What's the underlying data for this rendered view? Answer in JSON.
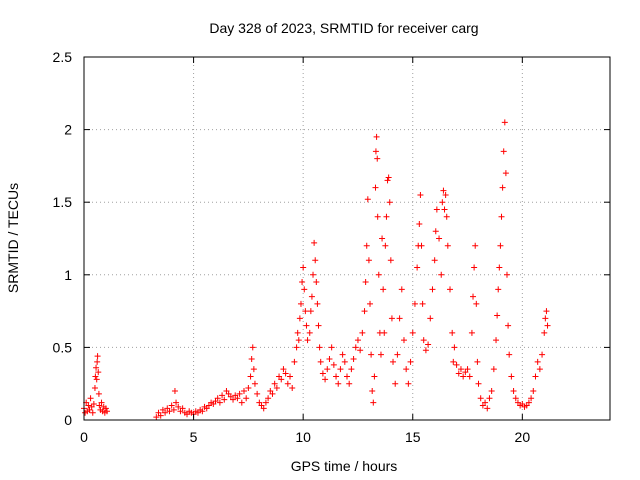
{
  "chart_data": {
    "type": "scatter",
    "title": "Day 328 of 2023, SRMTID for receiver carg",
    "xlabel": "GPS time / hours",
    "ylabel": "SRMTID / TECUs",
    "xlim": [
      0,
      24
    ],
    "ylim": [
      0,
      2.5
    ],
    "xticks": [
      0,
      5,
      10,
      15,
      20
    ],
    "yticks": [
      0,
      0.5,
      1,
      1.5,
      2,
      2.5
    ],
    "xtick_labels": [
      "0",
      "5",
      "10",
      "15",
      "20"
    ],
    "ytick_labels": [
      "0",
      "0.5",
      "1",
      "1.5",
      "2",
      "2.5"
    ],
    "grid": true,
    "marker": "+",
    "color": "#ff0000",
    "series": [
      {
        "name": "carg",
        "points": [
          [
            0.0,
            0.08
          ],
          [
            0.05,
            0.05
          ],
          [
            0.1,
            0.12
          ],
          [
            0.15,
            0.06
          ],
          [
            0.2,
            0.1
          ],
          [
            0.25,
            0.07
          ],
          [
            0.3,
            0.15
          ],
          [
            0.35,
            0.09
          ],
          [
            0.4,
            0.05
          ],
          [
            0.45,
            0.11
          ],
          [
            0.5,
            0.22
          ],
          [
            0.52,
            0.3
          ],
          [
            0.55,
            0.36
          ],
          [
            0.58,
            0.28
          ],
          [
            0.6,
            0.4
          ],
          [
            0.62,
            0.44
          ],
          [
            0.65,
            0.33
          ],
          [
            0.68,
            0.18
          ],
          [
            0.7,
            0.1
          ],
          [
            0.75,
            0.07
          ],
          [
            0.8,
            0.12
          ],
          [
            0.85,
            0.06
          ],
          [
            0.9,
            0.09
          ],
          [
            0.95,
            0.05
          ],
          [
            1.0,
            0.08
          ],
          [
            1.05,
            0.06
          ],
          [
            3.3,
            0.02
          ],
          [
            3.4,
            0.05
          ],
          [
            3.5,
            0.03
          ],
          [
            3.6,
            0.07
          ],
          [
            3.7,
            0.05
          ],
          [
            3.8,
            0.08
          ],
          [
            3.9,
            0.06
          ],
          [
            4.0,
            0.1
          ],
          [
            4.1,
            0.07
          ],
          [
            4.15,
            0.2
          ],
          [
            4.2,
            0.12
          ],
          [
            4.3,
            0.09
          ],
          [
            4.4,
            0.06
          ],
          [
            4.5,
            0.08
          ],
          [
            4.6,
            0.05
          ],
          [
            4.7,
            0.04
          ],
          [
            4.8,
            0.06
          ],
          [
            4.9,
            0.05
          ],
          [
            5.0,
            0.04
          ],
          [
            5.1,
            0.06
          ],
          [
            5.2,
            0.05
          ],
          [
            5.3,
            0.07
          ],
          [
            5.4,
            0.06
          ],
          [
            5.5,
            0.09
          ],
          [
            5.6,
            0.08
          ],
          [
            5.7,
            0.1
          ],
          [
            5.8,
            0.12
          ],
          [
            5.9,
            0.11
          ],
          [
            6.0,
            0.13
          ],
          [
            6.1,
            0.15
          ],
          [
            6.2,
            0.12
          ],
          [
            6.3,
            0.17
          ],
          [
            6.4,
            0.14
          ],
          [
            6.5,
            0.2
          ],
          [
            6.6,
            0.18
          ],
          [
            6.7,
            0.16
          ],
          [
            6.8,
            0.14
          ],
          [
            6.9,
            0.17
          ],
          [
            7.0,
            0.15
          ],
          [
            7.1,
            0.18
          ],
          [
            7.2,
            0.12
          ],
          [
            7.3,
            0.2
          ],
          [
            7.4,
            0.15
          ],
          [
            7.5,
            0.22
          ],
          [
            7.6,
            0.3
          ],
          [
            7.65,
            0.42
          ],
          [
            7.7,
            0.5
          ],
          [
            7.75,
            0.35
          ],
          [
            7.8,
            0.25
          ],
          [
            7.9,
            0.18
          ],
          [
            8.0,
            0.12
          ],
          [
            8.1,
            0.1
          ],
          [
            8.2,
            0.08
          ],
          [
            8.3,
            0.12
          ],
          [
            8.4,
            0.15
          ],
          [
            8.5,
            0.2
          ],
          [
            8.6,
            0.18
          ],
          [
            8.7,
            0.25
          ],
          [
            8.8,
            0.22
          ],
          [
            8.9,
            0.3
          ],
          [
            9.0,
            0.28
          ],
          [
            9.1,
            0.35
          ],
          [
            9.2,
            0.32
          ],
          [
            9.3,
            0.25
          ],
          [
            9.4,
            0.3
          ],
          [
            9.5,
            0.22
          ],
          [
            9.6,
            0.4
          ],
          [
            9.7,
            0.5
          ],
          [
            9.75,
            0.6
          ],
          [
            9.8,
            0.55
          ],
          [
            9.85,
            0.7
          ],
          [
            9.9,
            0.8
          ],
          [
            9.95,
            0.95
          ],
          [
            10.0,
            1.05
          ],
          [
            10.05,
            0.9
          ],
          [
            10.1,
            0.75
          ],
          [
            10.15,
            0.65
          ],
          [
            10.2,
            0.55
          ],
          [
            10.3,
            0.6
          ],
          [
            10.35,
            0.75
          ],
          [
            10.4,
            0.85
          ],
          [
            10.45,
            1.0
          ],
          [
            10.5,
            1.22
          ],
          [
            10.55,
            1.1
          ],
          [
            10.6,
            0.95
          ],
          [
            10.65,
            0.8
          ],
          [
            10.7,
            0.65
          ],
          [
            10.75,
            0.5
          ],
          [
            10.8,
            0.4
          ],
          [
            10.9,
            0.32
          ],
          [
            11.0,
            0.28
          ],
          [
            11.1,
            0.35
          ],
          [
            11.2,
            0.42
          ],
          [
            11.3,
            0.5
          ],
          [
            11.4,
            0.38
          ],
          [
            11.5,
            0.3
          ],
          [
            11.6,
            0.25
          ],
          [
            11.7,
            0.35
          ],
          [
            11.8,
            0.45
          ],
          [
            11.9,
            0.4
          ],
          [
            12.0,
            0.3
          ],
          [
            12.1,
            0.25
          ],
          [
            12.2,
            0.35
          ],
          [
            12.3,
            0.42
          ],
          [
            12.4,
            0.5
          ],
          [
            12.5,
            0.55
          ],
          [
            12.6,
            0.48
          ],
          [
            12.7,
            0.6
          ],
          [
            12.8,
            0.75
          ],
          [
            12.85,
            0.95
          ],
          [
            12.9,
            1.2
          ],
          [
            12.95,
            1.52
          ],
          [
            13.0,
            1.1
          ],
          [
            13.05,
            0.8
          ],
          [
            13.1,
            0.45
          ],
          [
            13.15,
            0.2
          ],
          [
            13.2,
            0.12
          ],
          [
            13.25,
            0.3
          ],
          [
            13.3,
            1.6
          ],
          [
            13.32,
            1.85
          ],
          [
            13.35,
            1.95
          ],
          [
            13.38,
            1.8
          ],
          [
            13.4,
            1.4
          ],
          [
            13.45,
            1.0
          ],
          [
            13.5,
            0.6
          ],
          [
            13.55,
            0.45
          ],
          [
            13.6,
            1.25
          ],
          [
            13.65,
            0.9
          ],
          [
            13.7,
            0.6
          ],
          [
            13.75,
            1.2
          ],
          [
            13.8,
            1.4
          ],
          [
            13.85,
            1.65
          ],
          [
            13.9,
            1.67
          ],
          [
            13.95,
            1.5
          ],
          [
            14.0,
            1.1
          ],
          [
            14.05,
            0.7
          ],
          [
            14.1,
            0.4
          ],
          [
            14.2,
            0.25
          ],
          [
            14.3,
            0.45
          ],
          [
            14.4,
            0.7
          ],
          [
            14.5,
            0.9
          ],
          [
            14.6,
            0.55
          ],
          [
            14.7,
            0.35
          ],
          [
            14.8,
            0.25
          ],
          [
            14.9,
            0.4
          ],
          [
            15.0,
            0.6
          ],
          [
            15.1,
            0.8
          ],
          [
            15.2,
            1.05
          ],
          [
            15.25,
            1.2
          ],
          [
            15.3,
            1.35
          ],
          [
            15.35,
            1.55
          ],
          [
            15.4,
            1.2
          ],
          [
            15.45,
            0.8
          ],
          [
            15.5,
            0.55
          ],
          [
            15.6,
            0.48
          ],
          [
            15.7,
            0.52
          ],
          [
            15.8,
            0.7
          ],
          [
            15.9,
            0.9
          ],
          [
            16.0,
            1.1
          ],
          [
            16.05,
            1.3
          ],
          [
            16.1,
            1.45
          ],
          [
            16.2,
            1.25
          ],
          [
            16.3,
            1.0
          ],
          [
            16.35,
            1.5
          ],
          [
            16.4,
            1.58
          ],
          [
            16.45,
            1.45
          ],
          [
            16.5,
            1.55
          ],
          [
            16.55,
            1.4
          ],
          [
            16.6,
            1.2
          ],
          [
            16.7,
            0.9
          ],
          [
            16.8,
            0.6
          ],
          [
            16.85,
            0.4
          ],
          [
            16.9,
            0.5
          ],
          [
            17.0,
            0.38
          ],
          [
            17.1,
            0.32
          ],
          [
            17.2,
            0.35
          ],
          [
            17.3,
            0.3
          ],
          [
            17.4,
            0.33
          ],
          [
            17.5,
            0.35
          ],
          [
            17.6,
            0.3
          ],
          [
            17.7,
            0.6
          ],
          [
            17.75,
            0.85
          ],
          [
            17.8,
            1.05
          ],
          [
            17.85,
            1.2
          ],
          [
            17.9,
            0.8
          ],
          [
            17.95,
            0.4
          ],
          [
            18.0,
            0.25
          ],
          [
            18.1,
            0.15
          ],
          [
            18.2,
            0.1
          ],
          [
            18.3,
            0.12
          ],
          [
            18.4,
            0.08
          ],
          [
            18.5,
            0.15
          ],
          [
            18.6,
            0.2
          ],
          [
            18.7,
            0.35
          ],
          [
            18.8,
            0.55
          ],
          [
            18.85,
            0.72
          ],
          [
            18.9,
            0.9
          ],
          [
            18.95,
            1.05
          ],
          [
            19.0,
            1.2
          ],
          [
            19.05,
            1.4
          ],
          [
            19.1,
            1.6
          ],
          [
            19.15,
            1.85
          ],
          [
            19.2,
            2.05
          ],
          [
            19.25,
            1.7
          ],
          [
            19.3,
            1.0
          ],
          [
            19.35,
            0.65
          ],
          [
            19.4,
            0.45
          ],
          [
            19.5,
            0.3
          ],
          [
            19.6,
            0.2
          ],
          [
            19.7,
            0.15
          ],
          [
            19.8,
            0.12
          ],
          [
            19.9,
            0.1
          ],
          [
            20.0,
            0.11
          ],
          [
            20.1,
            0.09
          ],
          [
            20.2,
            0.1
          ],
          [
            20.3,
            0.12
          ],
          [
            20.4,
            0.15
          ],
          [
            20.5,
            0.2
          ],
          [
            20.6,
            0.3
          ],
          [
            20.7,
            0.4
          ],
          [
            20.8,
            0.35
          ],
          [
            20.9,
            0.45
          ],
          [
            21.0,
            0.6
          ],
          [
            21.05,
            0.7
          ],
          [
            21.1,
            0.75
          ],
          [
            21.15,
            0.65
          ]
        ]
      }
    ]
  }
}
